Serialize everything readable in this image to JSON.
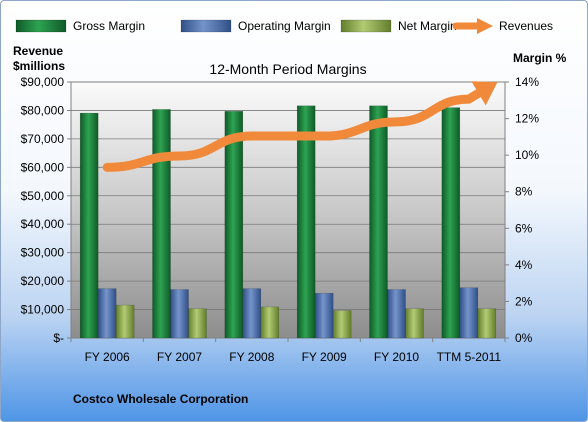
{
  "chart_data": {
    "type": "bar",
    "title": "12-Month Period Margins",
    "ylabel_left_line1": "Revenue",
    "ylabel_left_line2": "$millions",
    "ylabel_right": "Margin %",
    "footer": "Costco Wholesale Corporation",
    "categories": [
      "FY 2006",
      "FY 2007",
      "FY 2008",
      "FY 2009",
      "FY 2010",
      "TTM 5-2011"
    ],
    "left_axis": {
      "ylim": [
        0,
        90000
      ],
      "ticks": [
        0,
        10000,
        20000,
        30000,
        40000,
        50000,
        60000,
        70000,
        80000,
        90000
      ],
      "tick_labels": [
        "$-",
        "$10,000",
        "$20,000",
        "$30,000",
        "$40,000",
        "$50,000",
        "$60,000",
        "$70,000",
        "$80,000",
        "$90,000"
      ]
    },
    "right_axis": {
      "ylim": [
        0,
        14
      ],
      "ticks": [
        0,
        2,
        4,
        6,
        8,
        10,
        12,
        14
      ],
      "tick_labels": [
        "0%",
        "2%",
        "4%",
        "6%",
        "8%",
        "10%",
        "12%",
        "14%"
      ]
    },
    "legend_position": "top",
    "grid": true,
    "series": [
      {
        "name": "Gross Margin",
        "type": "bar",
        "axis": "right",
        "color": "#1f7a3c",
        "values": [
          12.3,
          12.5,
          12.4,
          12.7,
          12.7,
          12.6
        ]
      },
      {
        "name": "Operating Margin",
        "type": "bar",
        "axis": "right",
        "color": "#4f6fa8",
        "values": [
          2.7,
          2.65,
          2.7,
          2.45,
          2.65,
          2.75
        ]
      },
      {
        "name": "Net Margin",
        "type": "bar",
        "axis": "right",
        "color": "#8aa84a",
        "values": [
          1.8,
          1.6,
          1.7,
          1.5,
          1.6,
          1.6
        ]
      },
      {
        "name": "Revenues",
        "type": "line",
        "axis": "left",
        "color": "#f08a3a",
        "values": [
          60000,
          64000,
          71000,
          71000,
          76000,
          84000
        ]
      }
    ]
  }
}
